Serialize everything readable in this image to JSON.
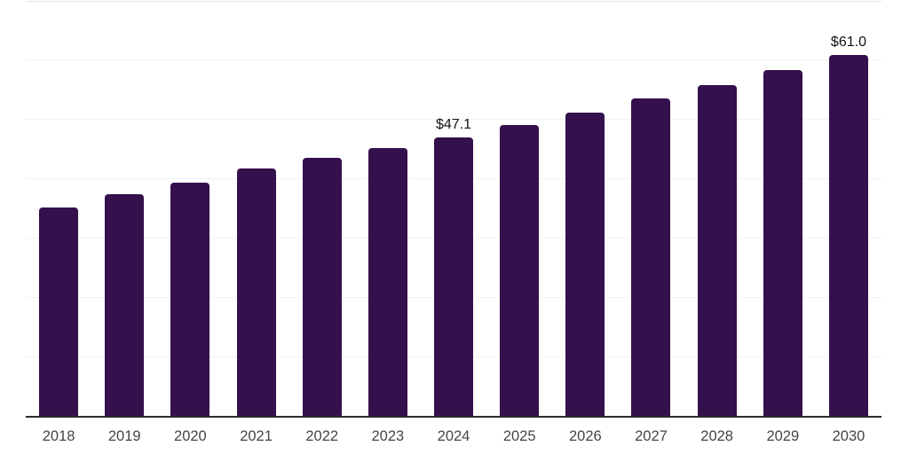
{
  "chart_data": {
    "type": "bar",
    "title": "",
    "xlabel": "",
    "ylabel": "",
    "categories": [
      "2018",
      "2019",
      "2020",
      "2021",
      "2022",
      "2023",
      "2024",
      "2025",
      "2026",
      "2027",
      "2028",
      "2029",
      "2030"
    ],
    "values": [
      35.2,
      37.5,
      39.5,
      41.8,
      43.6,
      45.3,
      47.1,
      49.2,
      51.3,
      53.6,
      55.9,
      58.4,
      61.0
    ],
    "data_labels": [
      "",
      "",
      "",
      "",
      "",
      "",
      "$47.1",
      "",
      "",
      "",
      "",
      "",
      "$61.0"
    ],
    "ylim": [
      0,
      70
    ],
    "grid_step": 10,
    "grid": "horizontal gridlines only, no y tick labels, no legend",
    "legend_position": "none",
    "colors": {
      "bar": "#34114D",
      "gridline": "#f2f2f2",
      "top_gridline": "#e5e5e5",
      "axis_line": "#2b2b2b",
      "value_label": "#121212",
      "tick_label": "#454545",
      "background": "#ffffff"
    }
  }
}
